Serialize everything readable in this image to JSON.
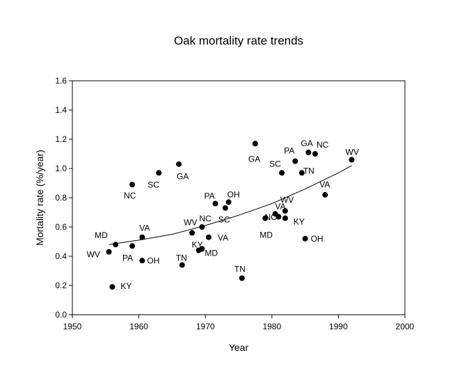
{
  "chart_data": {
    "type": "scatter",
    "title": "Oak mortality rate trends",
    "xlabel": "Year",
    "ylabel": "Mortality rate (%/year)",
    "xlim": [
      1950,
      2000
    ],
    "ylim": [
      0.0,
      1.6
    ],
    "xticks": [
      "1950",
      "1960",
      "1970",
      "1980",
      "1990",
      "2000"
    ],
    "yticks": [
      "0.0",
      "0.2",
      "0.4",
      "0.6",
      "0.8",
      "1.0",
      "1.2",
      "1.4",
      "1.6"
    ],
    "grid": false,
    "legend": "none",
    "points": [
      {
        "x": 1955.5,
        "y": 0.43,
        "label": "WV"
      },
      {
        "x": 1956.0,
        "y": 0.19,
        "label": "KY"
      },
      {
        "x": 1956.5,
        "y": 0.48,
        "label": "MD"
      },
      {
        "x": 1959.0,
        "y": 0.47,
        "label": "PA"
      },
      {
        "x": 1959.0,
        "y": 0.89,
        "label": "NC"
      },
      {
        "x": 1960.5,
        "y": 0.53,
        "label": "VA"
      },
      {
        "x": 1960.5,
        "y": 0.37,
        "label": "OH"
      },
      {
        "x": 1963.0,
        "y": 0.97,
        "label": "SC"
      },
      {
        "x": 1966.0,
        "y": 1.03,
        "label": "GA"
      },
      {
        "x": 1966.5,
        "y": 0.34,
        "label": "TN"
      },
      {
        "x": 1968.0,
        "y": 0.56,
        "label": "WV"
      },
      {
        "x": 1969.0,
        "y": 0.44,
        "label": "KY"
      },
      {
        "x": 1969.5,
        "y": 0.45,
        "label": "MD"
      },
      {
        "x": 1969.5,
        "y": 0.6,
        "label": "NC"
      },
      {
        "x": 1970.5,
        "y": 0.53,
        "label": "VA"
      },
      {
        "x": 1971.5,
        "y": 0.76,
        "label": "PA"
      },
      {
        "x": 1973.0,
        "y": 0.73,
        "label": "SC"
      },
      {
        "x": 1973.5,
        "y": 0.77,
        "label": "OH"
      },
      {
        "x": 1975.5,
        "y": 0.25,
        "label": "TN"
      },
      {
        "x": 1977.5,
        "y": 1.17,
        "label": "GA"
      },
      {
        "x": 1979.0,
        "y": 0.66,
        "label": "MD"
      },
      {
        "x": 1980.5,
        "y": 0.69,
        "label": "NC"
      },
      {
        "x": 1981.0,
        "y": 0.67,
        "label": "VA"
      },
      {
        "x": 1981.5,
        "y": 0.97,
        "label": "SC"
      },
      {
        "x": 1982.0,
        "y": 0.71,
        "label": "WV"
      },
      {
        "x": 1982.0,
        "y": 0.66,
        "label": "KY"
      },
      {
        "x": 1983.5,
        "y": 1.05,
        "label": "PA"
      },
      {
        "x": 1984.5,
        "y": 0.97,
        "label": "TN"
      },
      {
        "x": 1985.0,
        "y": 0.52,
        "label": "OH"
      },
      {
        "x": 1985.5,
        "y": 1.11,
        "label": "GA"
      },
      {
        "x": 1986.5,
        "y": 1.1,
        "label": "NC"
      },
      {
        "x": 1988.0,
        "y": 0.82,
        "label": "VA"
      },
      {
        "x": 1992.0,
        "y": 1.06,
        "label": "WV"
      }
    ],
    "trend_line": {
      "x": [
        1955.5,
        1960,
        1965,
        1970,
        1975,
        1980,
        1985,
        1990,
        1992
      ],
      "y": [
        0.48,
        0.51,
        0.55,
        0.61,
        0.68,
        0.76,
        0.86,
        0.97,
        1.02
      ]
    }
  }
}
